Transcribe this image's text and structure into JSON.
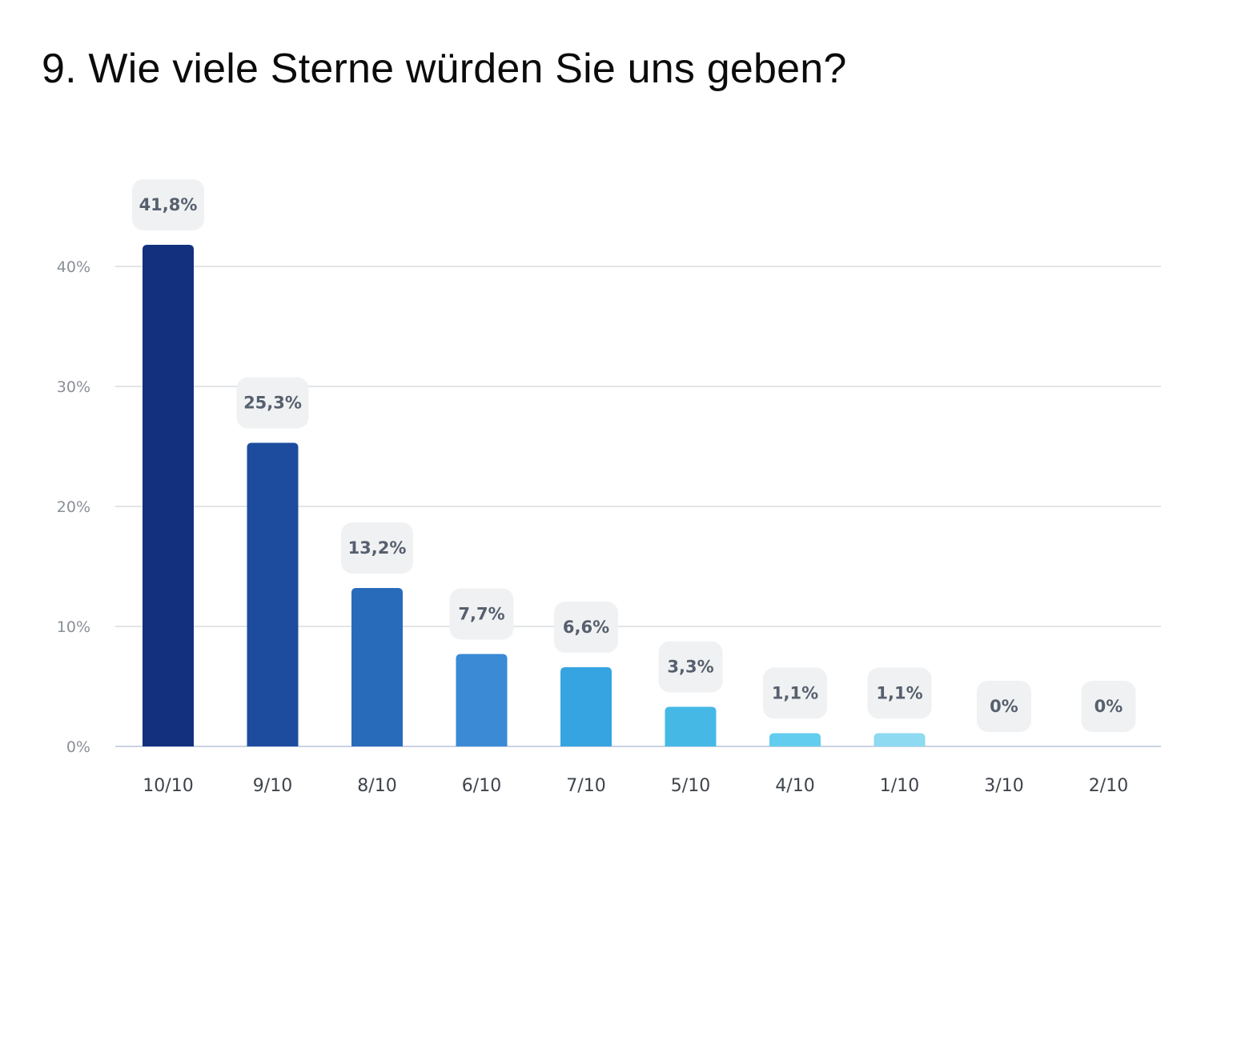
{
  "chart_data": {
    "type": "bar",
    "title": "9. Wie viele Sterne würden Sie uns geben?",
    "xlabel": "",
    "ylabel": "",
    "ylim": [
      0,
      40
    ],
    "grid": true,
    "legend": "none",
    "y_ticks": [
      "0%",
      "10%",
      "20%",
      "30%",
      "40%"
    ],
    "y_tick_values": [
      0,
      10,
      20,
      30,
      40
    ],
    "categories": [
      "10/10",
      "9/10",
      "8/10",
      "6/10",
      "7/10",
      "5/10",
      "4/10",
      "1/10",
      "3/10",
      "2/10"
    ],
    "values": [
      41.8,
      25.3,
      13.2,
      7.7,
      6.6,
      3.3,
      1.1,
      1.1,
      0,
      0
    ],
    "data_labels": [
      "41,8%",
      "25,3%",
      "13,2%",
      "7,7%",
      "6,6%",
      "3,3%",
      "1,1%",
      "1,1%",
      "0%",
      "0%"
    ],
    "colors": [
      "#13307f",
      "#1d4c9f",
      "#286bbb",
      "#3a8ad6",
      "#36a4e0",
      "#46b8e6",
      "#62cdee",
      "#8ddaf1",
      "#8ddaf1",
      "#8ddaf1"
    ],
    "gridline_color": "#e3e5e8",
    "baseline_color": "#c9d3e3",
    "label_bg_color": "#f0f1f2"
  }
}
